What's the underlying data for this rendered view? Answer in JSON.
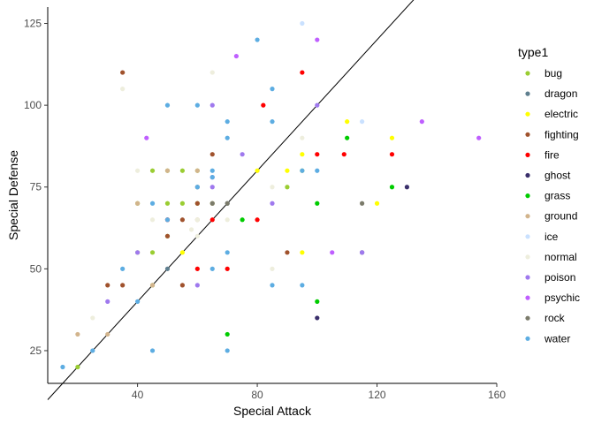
{
  "chart_data": {
    "type": "scatter",
    "title": "",
    "xlabel": "Special Attack",
    "ylabel": "Special Defense",
    "xlim": [
      10,
      160
    ],
    "ylim": [
      15,
      130
    ],
    "xticks": [
      40,
      80,
      120,
      160
    ],
    "yticks": [
      25,
      50,
      75,
      100,
      125
    ],
    "grid": false,
    "legend": {
      "title": "type1",
      "placement": "right"
    },
    "reference_line": {
      "type": "identity",
      "from": [
        10,
        10
      ],
      "to": [
        150,
        150
      ],
      "color": "#000000"
    },
    "series": [
      {
        "name": "bug",
        "color": "#9ACD32",
        "points": [
          [
            20,
            20
          ],
          [
            40,
            55
          ],
          [
            45,
            55
          ],
          [
            45,
            80
          ],
          [
            50,
            80
          ],
          [
            55,
            80
          ],
          [
            60,
            80
          ],
          [
            40,
            70
          ],
          [
            50,
            70
          ],
          [
            55,
            70
          ],
          [
            60,
            70
          ],
          [
            65,
            70
          ],
          [
            90,
            75
          ],
          [
            95,
            80
          ],
          [
            50,
            60
          ],
          [
            45,
            45
          ]
        ]
      },
      {
        "name": "dragon",
        "color": "#5F7F8F",
        "points": [
          [
            50,
            50
          ],
          [
            70,
            70
          ],
          [
            50,
            65
          ]
        ]
      },
      {
        "name": "electric",
        "color": "#FFFF00",
        "points": [
          [
            55,
            55
          ],
          [
            80,
            80
          ],
          [
            90,
            80
          ],
          [
            95,
            85
          ],
          [
            95,
            55
          ],
          [
            110,
            95
          ],
          [
            120,
            70
          ],
          [
            125,
            90
          ]
        ]
      },
      {
        "name": "fighting",
        "color": "#A0522D",
        "points": [
          [
            30,
            45
          ],
          [
            35,
            45
          ],
          [
            35,
            110
          ],
          [
            50,
            60
          ],
          [
            55,
            45
          ],
          [
            60,
            70
          ],
          [
            65,
            85
          ],
          [
            55,
            65
          ],
          [
            90,
            55
          ]
        ]
      },
      {
        "name": "fire",
        "color": "#FF0000",
        "points": [
          [
            50,
            65
          ],
          [
            60,
            50
          ],
          [
            65,
            65
          ],
          [
            70,
            50
          ],
          [
            80,
            65
          ],
          [
            82,
            100
          ],
          [
            95,
            110
          ],
          [
            100,
            85
          ],
          [
            109,
            85
          ],
          [
            125,
            85
          ]
        ]
      },
      {
        "name": "ghost",
        "color": "#3A2F6B",
        "points": [
          [
            100,
            35
          ],
          [
            115,
            55
          ],
          [
            130,
            75
          ]
        ]
      },
      {
        "name": "grass",
        "color": "#00CC00",
        "points": [
          [
            70,
            30
          ],
          [
            75,
            65
          ],
          [
            100,
            40
          ],
          [
            100,
            70
          ],
          [
            110,
            90
          ],
          [
            125,
            75
          ]
        ]
      },
      {
        "name": "ground",
        "color": "#D2B48C",
        "points": [
          [
            20,
            30
          ],
          [
            30,
            30
          ],
          [
            40,
            70
          ],
          [
            45,
            45
          ],
          [
            50,
            80
          ],
          [
            60,
            80
          ],
          [
            60,
            65
          ],
          [
            65,
            70
          ]
        ]
      },
      {
        "name": "ice",
        "color": "#CAE1FF",
        "points": [
          [
            95,
            125
          ],
          [
            115,
            95
          ],
          [
            100,
            80
          ]
        ]
      },
      {
        "name": "normal",
        "color": "#EEEEDD",
        "points": [
          [
            25,
            35
          ],
          [
            35,
            105
          ],
          [
            40,
            80
          ],
          [
            45,
            65
          ],
          [
            58,
            62
          ],
          [
            60,
            65
          ],
          [
            60,
            60
          ],
          [
            65,
            110
          ],
          [
            70,
            65
          ],
          [
            85,
            75
          ],
          [
            85,
            50
          ],
          [
            95,
            90
          ]
        ]
      },
      {
        "name": "poison",
        "color": "#9F79EE",
        "points": [
          [
            30,
            40
          ],
          [
            40,
            55
          ],
          [
            60,
            45
          ],
          [
            65,
            75
          ],
          [
            65,
            78
          ],
          [
            65,
            100
          ],
          [
            75,
            85
          ],
          [
            85,
            70
          ],
          [
            100,
            100
          ],
          [
            115,
            55
          ]
        ]
      },
      {
        "name": "psychic",
        "color": "#BF5FFF",
        "points": [
          [
            43,
            90
          ],
          [
            73,
            115
          ],
          [
            100,
            120
          ],
          [
            105,
            55
          ],
          [
            135,
            95
          ],
          [
            154,
            90
          ]
        ]
      },
      {
        "name": "rock",
        "color": "#7B7B6B",
        "points": [
          [
            60,
            75
          ],
          [
            65,
            70
          ],
          [
            70,
            70
          ],
          [
            115,
            70
          ]
        ]
      },
      {
        "name": "water",
        "color": "#5DADE2",
        "points": [
          [
            15,
            20
          ],
          [
            25,
            25
          ],
          [
            35,
            50
          ],
          [
            40,
            40
          ],
          [
            45,
            70
          ],
          [
            45,
            25
          ],
          [
            50,
            100
          ],
          [
            50,
            65
          ],
          [
            60,
            100
          ],
          [
            60,
            75
          ],
          [
            65,
            80
          ],
          [
            65,
            50
          ],
          [
            65,
            78
          ],
          [
            70,
            95
          ],
          [
            70,
            90
          ],
          [
            70,
            55
          ],
          [
            70,
            25
          ],
          [
            80,
            120
          ],
          [
            85,
            105
          ],
          [
            85,
            95
          ],
          [
            85,
            45
          ],
          [
            95,
            80
          ],
          [
            95,
            45
          ],
          [
            100,
            80
          ]
        ]
      }
    ]
  }
}
